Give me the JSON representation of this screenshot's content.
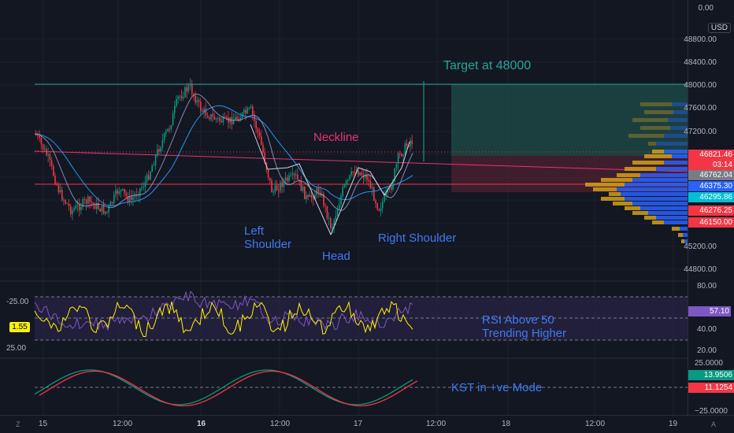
{
  "price_axis": {
    "ticks": [
      "0.00",
      "48800.00",
      "48400.00",
      "48000.00",
      "47600.00",
      "47200.00",
      "45200.00",
      "44800.00"
    ],
    "currency": "USD",
    "badges": [
      {
        "text": "46821.46",
        "color": "#f23645"
      },
      {
        "text": "03:14",
        "color": "#f23645"
      },
      {
        "text": "46762.04",
        "color": "#787b86"
      },
      {
        "text": "46375.30",
        "color": "#2962ff"
      },
      {
        "text": "46295.86",
        "color": "#00bcd4"
      },
      {
        "text": "46276.25",
        "color": "#f23645"
      },
      {
        "text": "46150.00",
        "color": "#f23645"
      }
    ]
  },
  "rsi_axis": {
    "ticks": [
      "80.00",
      "40.00",
      "20.00"
    ],
    "value_badge": {
      "text": "57.10",
      "color": "#7e57c2"
    },
    "left_ticks": [
      "-25.00",
      "25.00"
    ],
    "left_badge": "1.55"
  },
  "kst_axis": {
    "ticks": [
      "25.0000",
      "−25.0000"
    ],
    "badges": [
      {
        "text": "13.9506",
        "color": "#089981"
      },
      {
        "text": "11.1254",
        "color": "#f23645"
      }
    ]
  },
  "time_axis": {
    "labels": [
      {
        "text": "15",
        "bold": false
      },
      {
        "text": "12:00",
        "bold": false
      },
      {
        "text": "16",
        "bold": true
      },
      {
        "text": "12:00",
        "bold": false
      },
      {
        "text": "17",
        "bold": false
      },
      {
        "text": "12:00",
        "bold": false
      },
      {
        "text": "18",
        "bold": false
      },
      {
        "text": "12:00",
        "bold": false
      },
      {
        "text": "19",
        "bold": false
      }
    ],
    "corner_left": "Z",
    "corner_right": "A"
  },
  "annotations": {
    "target": "Target at 48000",
    "neckline": "Neckline",
    "left_shoulder_1": "Left",
    "left_shoulder_2": "Shoulder",
    "head": "Head",
    "right_shoulder": "Right Shoulder",
    "rsi_1": "RSI Above 50",
    "rsi_2": "Trending Higher",
    "kst": "KST in +ve Mode"
  },
  "colors": {
    "background": "#131722",
    "up": "#089981",
    "down": "#f23645",
    "support_line": "#f23645",
    "target_box": "#1f4d48",
    "stop_box": "#4a2030",
    "volume_profile_up": "#2962ff",
    "volume_profile_down": "#d4a017",
    "ma_blue": "#2196f3",
    "rsi_purple": "#7e57c2",
    "rsi_yellow": "#fff200"
  },
  "chart_data": {
    "type": "candlestick",
    "symbol_currency": "USD",
    "price_range": [
      45200,
      48800
    ],
    "target": 48000,
    "current_price": 46821.46,
    "countdown": "03:14",
    "levels": [
      46762.04,
      46375.3,
      46295.86,
      46276.25,
      46150.0
    ],
    "x_ticks": [
      "15",
      "12:00",
      "16",
      "12:00",
      "17",
      "12:00",
      "18",
      "12:00",
      "19"
    ],
    "rsi_current": 57.1,
    "kst_values": [
      13.9506,
      11.1254
    ]
  }
}
